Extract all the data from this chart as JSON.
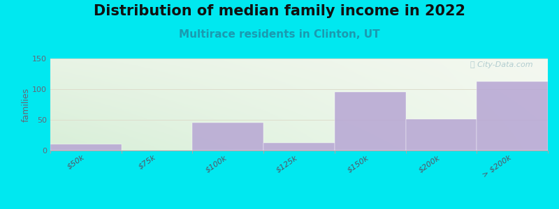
{
  "title": "Distribution of median family income in 2022",
  "subtitle": "Multirace residents in Clinton, UT",
  "categories": [
    "$50k",
    "$75k",
    "$100k",
    "$125k",
    "$150k",
    "$200k",
    "> $200k"
  ],
  "values": [
    10,
    0,
    46,
    12,
    96,
    51,
    112
  ],
  "bar_color": "#b8a8d4",
  "ylabel": "families",
  "ylim": [
    0,
    150
  ],
  "yticks": [
    0,
    50,
    100,
    150
  ],
  "background_color": "#00e8f0",
  "plot_bg_left": "#d8efd8",
  "plot_bg_right": "#f0f8ee",
  "plot_bg_top": "#f8f8f0",
  "title_fontsize": 15,
  "subtitle_fontsize": 11,
  "subtitle_color": "#1a9ab0",
  "watermark": "ⓘ City-Data.com",
  "watermark_color": "#aac8cc"
}
